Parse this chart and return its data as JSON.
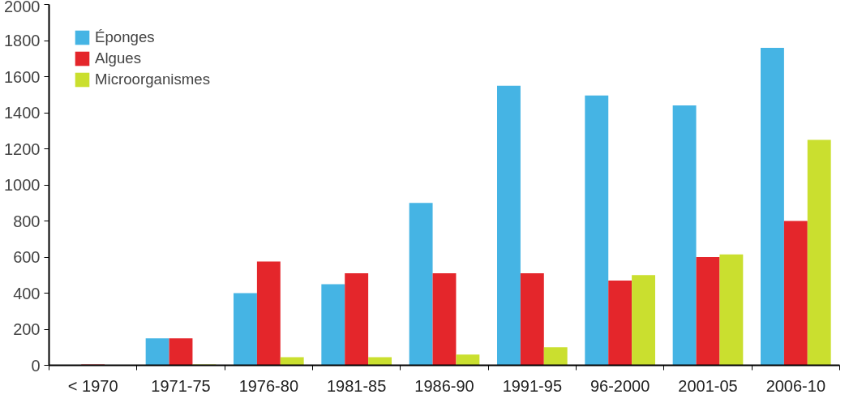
{
  "chart_data": {
    "type": "bar",
    "categories": [
      "< 1970",
      "1971-75",
      "1976-80",
      "1981-85",
      "1986-90",
      "1991-95",
      "96-2000",
      "2001-05",
      "2006-10"
    ],
    "series": [
      {
        "name": "Éponges",
        "color": "#45b4e4",
        "values": [
          null,
          150,
          400,
          450,
          900,
          1550,
          1495,
          1440,
          1760
        ]
      },
      {
        "name": "Algues",
        "color": "#e4262b",
        "values": [
          5,
          150,
          575,
          510,
          510,
          510,
          470,
          600,
          800
        ]
      },
      {
        "name": "Microorganismes",
        "color": "#cadf2f",
        "values": [
          2,
          5,
          45,
          45,
          60,
          100,
          500,
          615,
          1250
        ]
      }
    ],
    "ylim": [
      0,
      2000
    ],
    "yticks": [
      0,
      200,
      400,
      600,
      800,
      1000,
      1200,
      1400,
      1600,
      1800,
      2000
    ],
    "grid": false,
    "legend": "top left"
  }
}
